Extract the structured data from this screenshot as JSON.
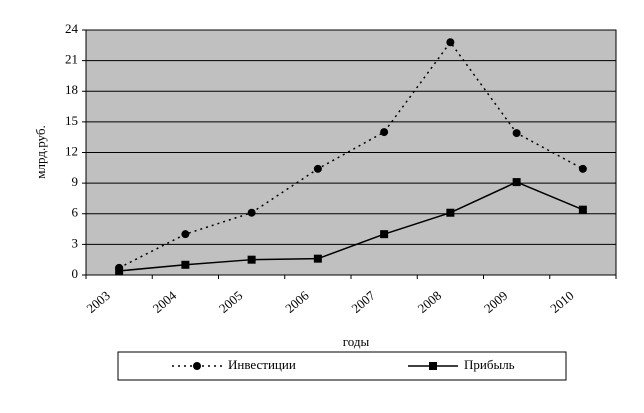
{
  "chart_data": {
    "type": "line",
    "x_label": "годы",
    "y_label": "млрд.руб.",
    "categories": [
      "2003",
      "2004",
      "2005",
      "2006",
      "2007",
      "2008",
      "2009",
      "2010"
    ],
    "series": [
      {
        "name": "Инвестиции",
        "color": "#000000",
        "dash": "dotted",
        "marker": "circle",
        "values": [
          0.7,
          4,
          6.1,
          10.4,
          14,
          22.8,
          13.9,
          10.4
        ]
      },
      {
        "name": "Прибыль",
        "color": "#000000",
        "dash": "solid",
        "marker": "square",
        "values": [
          0.4,
          1.0,
          1.5,
          1.6,
          4.0,
          6.1,
          9.1,
          6.4
        ]
      }
    ],
    "ylim": [
      0,
      24
    ],
    "yticks": [
      0,
      3,
      6,
      9,
      12,
      15,
      18,
      21,
      24
    ],
    "grid": true,
    "legend": "bottom"
  }
}
